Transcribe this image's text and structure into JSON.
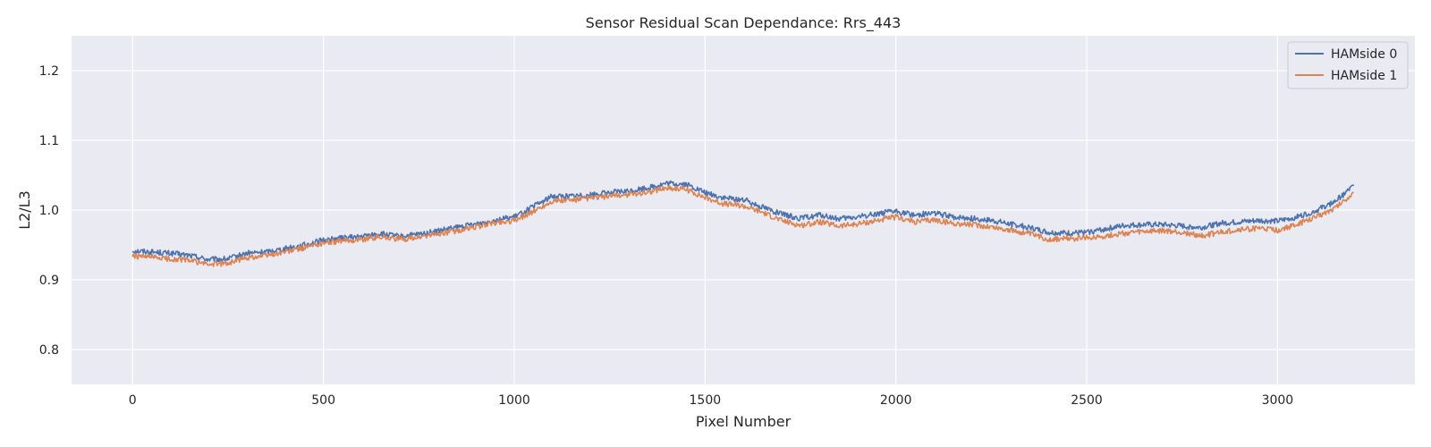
{
  "chart_data": {
    "type": "line",
    "title": "Sensor Residual Scan Dependance: Rrs_443",
    "xlabel": "Pixel Number",
    "ylabel": "L2/L3",
    "xlim": [
      -160,
      3360
    ],
    "ylim": [
      0.75,
      1.25
    ],
    "xticks": [
      0,
      500,
      1000,
      1500,
      2000,
      2500,
      3000
    ],
    "yticks": [
      0.8,
      0.9,
      1.0,
      1.1,
      1.2
    ],
    "xtick_labels": [
      "0",
      "500",
      "1000",
      "1500",
      "2000",
      "2500",
      "3000"
    ],
    "ytick_labels": [
      "0.8",
      "0.9",
      "1.0",
      "1.1",
      "1.2"
    ],
    "grid": true,
    "legend_position": "top-right",
    "series": [
      {
        "name": "HAMside 0",
        "color": "#4c72b0",
        "x": [
          0,
          50,
          100,
          150,
          200,
          250,
          300,
          350,
          400,
          450,
          500,
          550,
          600,
          650,
          700,
          750,
          800,
          850,
          900,
          950,
          1000,
          1050,
          1100,
          1150,
          1200,
          1250,
          1300,
          1350,
          1400,
          1450,
          1500,
          1550,
          1600,
          1650,
          1700,
          1750,
          1800,
          1850,
          1900,
          1950,
          2000,
          2050,
          2100,
          2150,
          2200,
          2250,
          2300,
          2350,
          2400,
          2450,
          2500,
          2550,
          2600,
          2650,
          2700,
          2750,
          2800,
          2850,
          2900,
          2950,
          3000,
          3050,
          3100,
          3150,
          3200
        ],
        "values": [
          0.942,
          0.94,
          0.938,
          0.935,
          0.929,
          0.93,
          0.938,
          0.94,
          0.945,
          0.95,
          0.957,
          0.96,
          0.962,
          0.966,
          0.962,
          0.965,
          0.97,
          0.975,
          0.98,
          0.986,
          0.99,
          1.005,
          1.02,
          1.02,
          1.022,
          1.025,
          1.027,
          1.032,
          1.038,
          1.037,
          1.025,
          1.017,
          1.015,
          1.005,
          0.994,
          0.988,
          0.993,
          0.987,
          0.99,
          0.995,
          0.998,
          0.993,
          0.996,
          0.99,
          0.988,
          0.985,
          0.98,
          0.975,
          0.968,
          0.967,
          0.968,
          0.973,
          0.978,
          0.979,
          0.979,
          0.977,
          0.975,
          0.981,
          0.983,
          0.985,
          0.984,
          0.99,
          0.999,
          1.012,
          1.035
        ]
      },
      {
        "name": "HAMside 1",
        "color": "#dd8452",
        "x": [
          0,
          50,
          100,
          150,
          200,
          250,
          300,
          350,
          400,
          450,
          500,
          550,
          600,
          650,
          700,
          750,
          800,
          850,
          900,
          950,
          1000,
          1050,
          1100,
          1150,
          1200,
          1250,
          1300,
          1350,
          1400,
          1450,
          1500,
          1550,
          1600,
          1650,
          1700,
          1750,
          1800,
          1850,
          1900,
          1950,
          2000,
          2050,
          2100,
          2150,
          2200,
          2250,
          2300,
          2350,
          2400,
          2450,
          2500,
          2550,
          2600,
          2650,
          2700,
          2750,
          2800,
          2850,
          2900,
          2950,
          3000,
          3050,
          3100,
          3150,
          3200
        ],
        "values": [
          0.934,
          0.932,
          0.93,
          0.928,
          0.922,
          0.924,
          0.932,
          0.935,
          0.94,
          0.946,
          0.953,
          0.956,
          0.958,
          0.962,
          0.958,
          0.961,
          0.966,
          0.97,
          0.976,
          0.982,
          0.985,
          0.998,
          1.013,
          1.014,
          1.017,
          1.02,
          1.022,
          1.026,
          1.032,
          1.03,
          1.018,
          1.009,
          1.006,
          0.997,
          0.985,
          0.978,
          0.983,
          0.977,
          0.98,
          0.985,
          0.99,
          0.983,
          0.986,
          0.981,
          0.979,
          0.976,
          0.971,
          0.966,
          0.958,
          0.959,
          0.96,
          0.963,
          0.967,
          0.969,
          0.97,
          0.968,
          0.963,
          0.968,
          0.972,
          0.974,
          0.971,
          0.979,
          0.99,
          1.003,
          1.025
        ]
      }
    ]
  }
}
